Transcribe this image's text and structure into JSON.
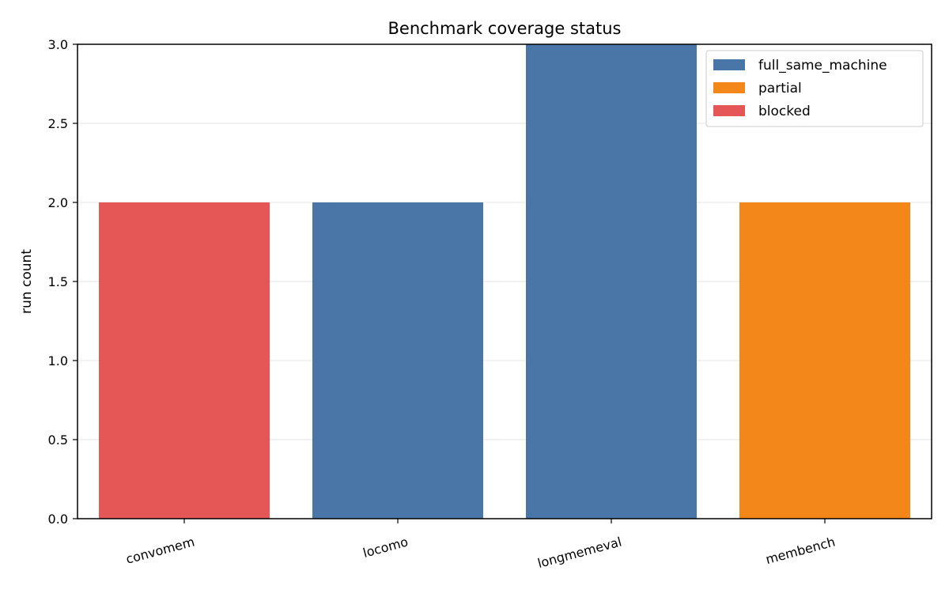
{
  "chart_data": {
    "type": "bar",
    "title": "Benchmark coverage status",
    "xlabel": "",
    "ylabel": "run count",
    "ylim": [
      0,
      3
    ],
    "yticks": [
      "0.0",
      "0.5",
      "1.0",
      "1.5",
      "2.0",
      "2.5",
      "3.0"
    ],
    "categories": [
      "convomem",
      "locomo",
      "longmemeval",
      "membench"
    ],
    "values": [
      2,
      2,
      3,
      2
    ],
    "bar_status": [
      "blocked",
      "full_same_machine",
      "full_same_machine",
      "partial"
    ],
    "legend": [
      {
        "label": "full_same_machine",
        "color": "#4a76a7"
      },
      {
        "label": "partial",
        "color": "#f48719"
      },
      {
        "label": "blocked",
        "color": "#e55756"
      }
    ],
    "grid": "horizontal",
    "legend_position": "top-right"
  }
}
